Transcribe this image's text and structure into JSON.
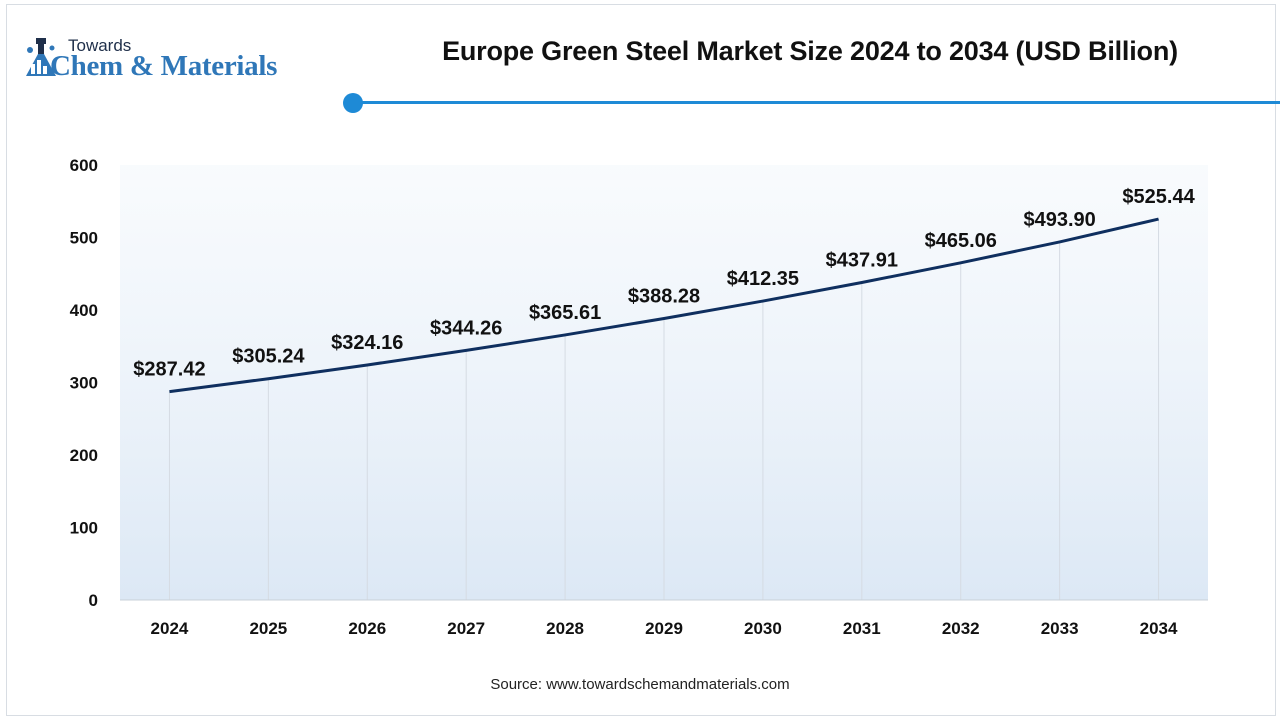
{
  "logo": {
    "small_text": "Towards",
    "big_text": "Chem & Materials"
  },
  "source": "Source: www.towardschemandmaterials.com",
  "colors": {
    "line": "#0f2f5f",
    "accent": "#1e8ad6",
    "area_top": "#f4f8fc",
    "area_bottom": "#dce8f5"
  },
  "chart_data": {
    "type": "line",
    "title": "Europe Green Steel Market Size 2024 to 2034 (USD Billion)",
    "xlabel": "",
    "ylabel": "",
    "categories": [
      "2024",
      "2025",
      "2026",
      "2027",
      "2028",
      "2029",
      "2030",
      "2031",
      "2032",
      "2033",
      "2034"
    ],
    "values": [
      287.42,
      305.24,
      324.16,
      344.26,
      365.61,
      388.28,
      412.35,
      437.91,
      465.06,
      493.9,
      525.44
    ],
    "data_labels": [
      "$287.42",
      "$305.24",
      "$324.16",
      "$344.26",
      "$365.61",
      "$388.28",
      "$412.35",
      "$437.91",
      "$465.06",
      "$493.90",
      "$525.44"
    ],
    "y_ticks": [
      "0",
      "100",
      "200",
      "300",
      "400",
      "500",
      "600"
    ],
    "ylim": [
      0,
      600
    ],
    "grid": "vertical"
  }
}
